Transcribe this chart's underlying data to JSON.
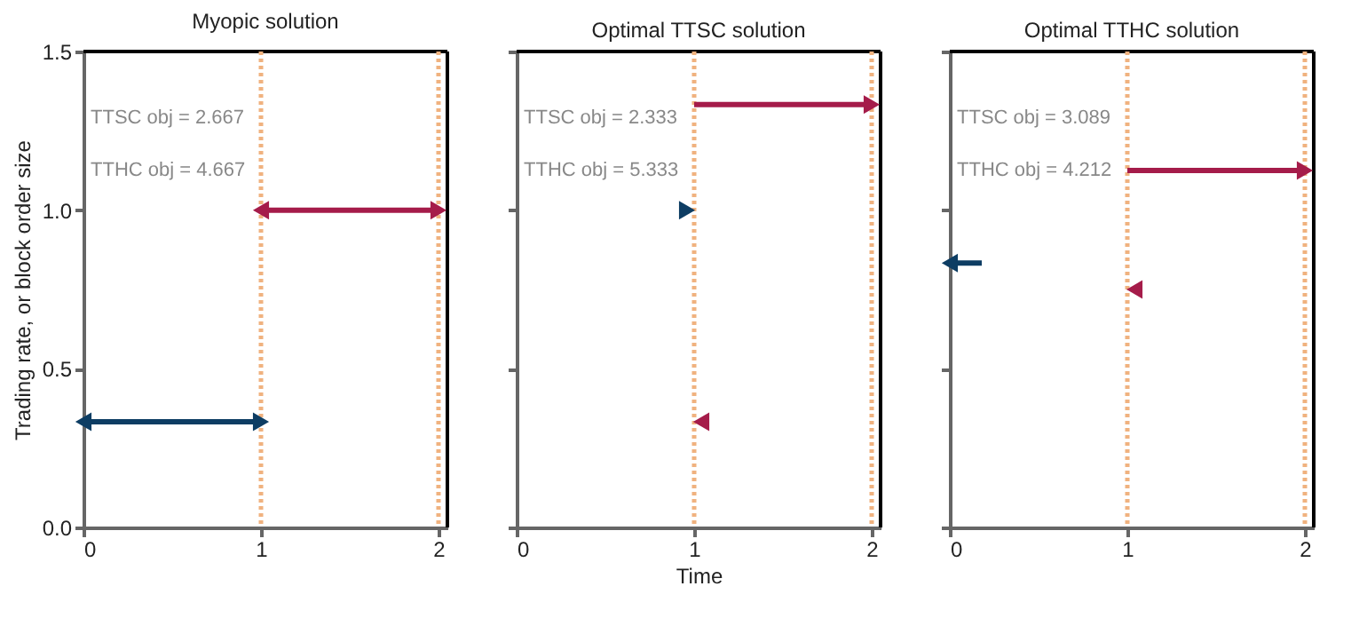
{
  "chart_data": [
    {
      "type": "line",
      "title": "Myopic solution",
      "ylabel": "Trading rate, or block order size",
      "xlim": [
        0,
        2.05
      ],
      "xticks": [
        0,
        1,
        2
      ],
      "ylim": [
        0,
        1.5
      ],
      "yticks": [
        {
          "value": 0,
          "label": "0.0"
        },
        {
          "value": 0.5,
          "label": "0.5"
        },
        {
          "value": 1,
          "label": "1.0"
        },
        {
          "value": 1.5,
          "label": "1.5"
        }
      ],
      "grid": false,
      "legend": false,
      "annotations": [
        "TTSC obj = 2.667",
        "TTHC obj = 4.667"
      ],
      "ref_lines": [
        {
          "axis": "x",
          "value": 1,
          "color": "#f0b27f",
          "line_style": "dotted"
        },
        {
          "axis": "x",
          "value": 2,
          "color": "#f0b27f",
          "line_style": "dotted"
        }
      ],
      "series": [
        {
          "color": "#0d3d63",
          "x": [
            0.5,
            0,
            1
          ],
          "values": [
            0.333,
            0.333,
            0.333
          ],
          "marker": "triangle"
        },
        {
          "color": "#a51c4a",
          "x": [
            1.5,
            1,
            2
          ],
          "values": [
            1.0,
            1.0,
            1.0
          ],
          "marker": "triangle"
        }
      ]
    },
    {
      "type": "line",
      "title": "Optimal TTSC solution",
      "xlabel": "Time",
      "xlim": [
        0,
        2.05
      ],
      "xticks": [
        0,
        1,
        2
      ],
      "ylim": [
        0,
        1.5
      ],
      "yticks": [
        0,
        0.5,
        1,
        1.5
      ],
      "grid": false,
      "legend": false,
      "tick_labels": "x",
      "annotations": [
        "TTSC obj = 2.333",
        "TTHC obj = 5.333"
      ],
      "ref_lines": [
        {
          "axis": "x",
          "value": 1,
          "color": "#f0b27f",
          "line_style": "dotted"
        },
        {
          "axis": "x",
          "value": 2,
          "color": "#f0b27f",
          "line_style": "dotted"
        }
      ],
      "series": [
        {
          "type": "scatter",
          "color": "#0d3d63",
          "x": [
            0.96
          ],
          "values": [
            1.0
          ],
          "marker": "triangle"
        },
        {
          "color": "#a51c4a",
          "x": [
            1,
            2
          ],
          "values": [
            1.333,
            1.333
          ],
          "marker": "triangle"
        },
        {
          "type": "scatter",
          "color": "#a51c4a",
          "x": [
            1.04
          ],
          "values": [
            0.333
          ],
          "marker": "triangle"
        }
      ]
    },
    {
      "type": "line",
      "title": "Optimal TTHC solution",
      "xlim": [
        0,
        2.05
      ],
      "xticks": [
        0,
        1,
        2
      ],
      "ylim": [
        0,
        1.5
      ],
      "yticks": [
        0,
        0.5,
        1,
        1.5
      ],
      "grid": false,
      "legend": false,
      "tick_labels": "x",
      "annotations": [
        "TTSC obj = 3.089",
        "TTHC obj = 4.212"
      ],
      "ref_lines": [
        {
          "axis": "x",
          "value": 1,
          "color": "#f0b27f",
          "line_style": "dotted"
        },
        {
          "axis": "x",
          "value": 2,
          "color": "#f0b27f",
          "line_style": "dotted"
        }
      ],
      "series": [
        {
          "color": "#0d3d63",
          "x": [
            0.18,
            0
          ],
          "values": [
            0.833,
            0.833
          ],
          "marker": "triangle"
        },
        {
          "type": "scatter",
          "color": "#a51c4a",
          "x": [
            1.04
          ],
          "values": [
            0.75
          ],
          "marker": "triangle"
        },
        {
          "color": "#a51c4a",
          "x": [
            1,
            2
          ],
          "values": [
            1.125,
            1.125
          ],
          "marker": "triangle"
        }
      ]
    }
  ]
}
